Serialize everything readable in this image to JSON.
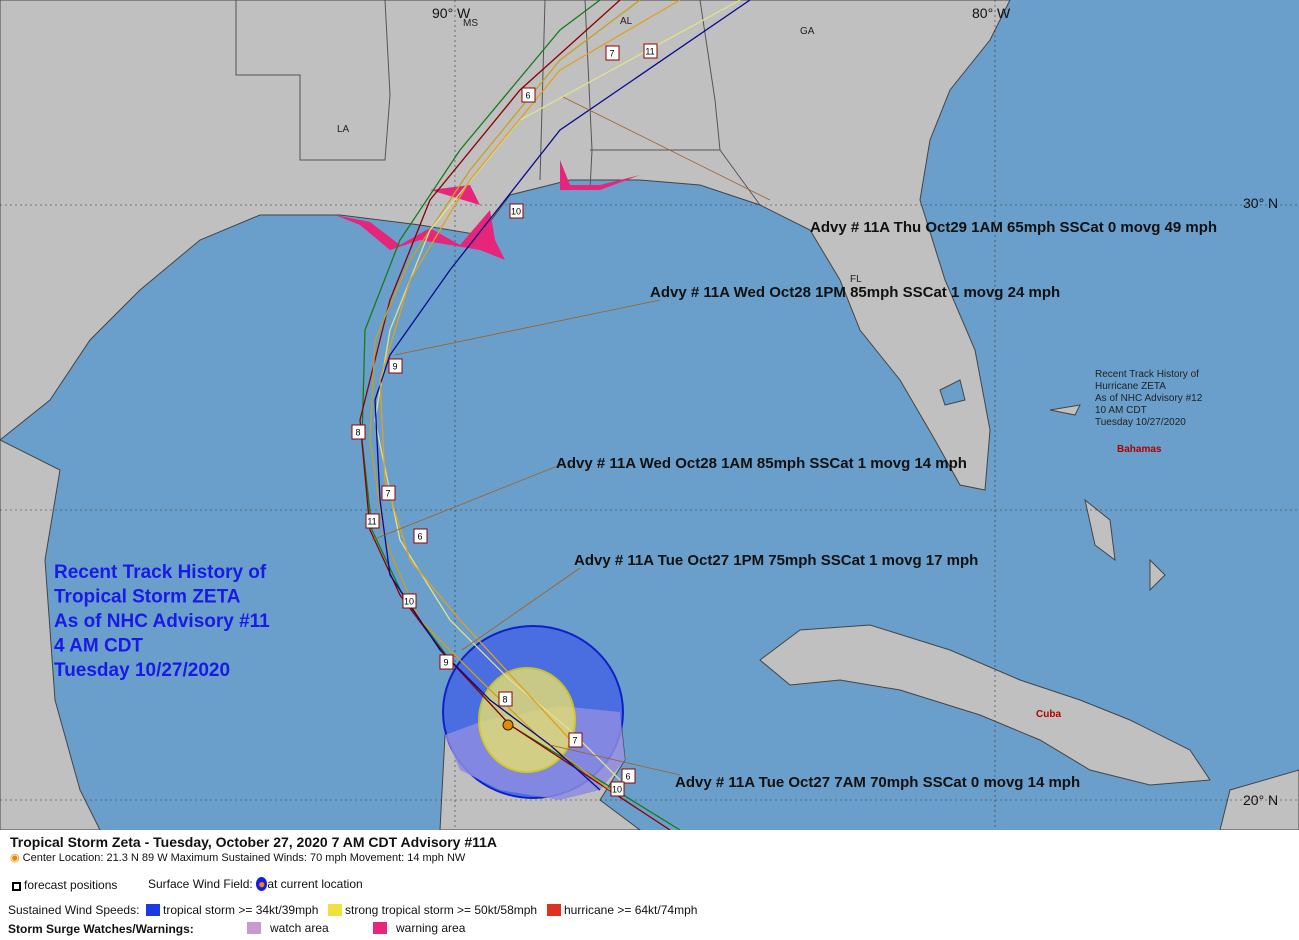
{
  "map": {
    "grid_labels": [
      "90° W",
      "80° W",
      "30° N",
      "20° N"
    ],
    "state_labels": [
      "MS",
      "AL",
      "GA",
      "LA",
      "FL"
    ],
    "place_labels": [
      "Bahamas",
      "Cuba"
    ],
    "inset_note": [
      "Recent Track History of",
      "Hurricane ZETA",
      "As of NHC Advisory #12",
      "10 AM CDT",
      "Tuesday 10/27/2020"
    ],
    "track_history_title": [
      "Recent Track History of",
      "Tropical Storm ZETA",
      "As of NHC Advisory #11",
      "4 AM CDT",
      "Tuesday 10/27/2020"
    ],
    "advisory_notes": [
      "Advy # 11A Thu Oct29 1AM  65mph SSCat 0 movg 49 mph",
      "Advy # 11A Wed Oct28 1PM  85mph SSCat 1 movg 24 mph",
      "Advy # 11A Wed Oct28 1AM  85mph SSCat 1 movg 14 mph",
      "Advy # 11A Tue Oct27 1PM  75mph SSCat 1 movg 17 mph",
      "Advy # 11A Tue Oct27 7AM  70mph SSCat 0 movg 14 mph"
    ],
    "position_labels": [
      "7",
      "11",
      "6",
      "10",
      "9",
      "8",
      "7",
      "11",
      "6",
      "10",
      "9",
      "8",
      "7",
      "6",
      "10"
    ]
  },
  "legend": {
    "title": "Tropical Storm Zeta  -  Tuesday, October 27, 2020  7 AM CDT   Advisory #11A",
    "center_line": "Center Location: 21.3 N  89 W   Maximum Sustained Winds: 70 mph   Movement: 14 mph NW",
    "forecast_positions": "forecast positions",
    "surface_wind_field": "Surface Wind Field:",
    "at_current_location": "at current location",
    "sustained_wind_speeds": "Sustained Wind Speeds:",
    "tropical_storm": "tropical storm >= 34kt/39mph",
    "strong_tropical_storm": "strong tropical storm >= 50kt/58mph",
    "hurricane": "hurricane >= 64kt/74mph",
    "storm_surge": "Storm Surge Watches/Warnings:",
    "watch_area": "watch area",
    "warning_area": "warning area"
  }
}
